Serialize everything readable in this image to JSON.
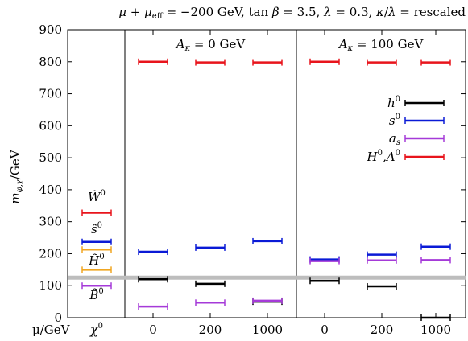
{
  "chart_data": {
    "type": "scatter",
    "title": "μ + μ_eff = −200 GeV, tan β = 3.5, λ = 0.3, κ/λ = rescaled",
    "title_parts": {
      "t1": "μ + μ",
      "t1sub": "eff",
      "t2": " = −200 GeV, tan ",
      "beta": "β",
      "t3": " = 3.5, ",
      "lam1": "λ",
      "t4": " = 0.3, ",
      "kap": "κ",
      "t5": "/",
      "lam2": "λ",
      "t6": " = rescaled"
    },
    "ylabel": {
      "main": "m",
      "sub": "φ,χ",
      "unit": "/GeV"
    },
    "xlabel": "μ/GeV",
    "ylim": [
      0,
      900
    ],
    "y_ticks": [
      0,
      100,
      200,
      300,
      400,
      500,
      600,
      700,
      800,
      900
    ],
    "grid": false,
    "reference_line": 125,
    "panels": [
      {
        "label": "",
        "x_tick": "",
        "cat_label": "χ⁰"
      },
      {
        "label": "A_κ = 0 GeV",
        "label_main": "A",
        "label_sub": "κ",
        "label_rest": " = 0 GeV"
      },
      {
        "label": "A_κ = 100 GeV",
        "label_main": "A",
        "label_sub": "κ",
        "label_rest": " = 100 GeV"
      }
    ],
    "x_tick_labels": [
      "χ",
      "0",
      "200",
      "1000",
      "0",
      "200",
      "1000"
    ],
    "chi_tick": {
      "base": "χ",
      "sup": "0"
    },
    "neutralino_labels": [
      {
        "base": "W̃",
        "sup": "0"
      },
      {
        "base": "s̃",
        "sup": "0"
      },
      {
        "base": "H̃",
        "sup": "0"
      },
      {
        "base": "B̃",
        "sup": "0"
      }
    ],
    "legend": {
      "placement": "right",
      "entries": [
        {
          "label_main": "h",
          "label_sup": "0",
          "color": "#000000"
        },
        {
          "label_main": "s",
          "label_sup": "0",
          "color": "#0a1ad6"
        },
        {
          "label_main": "a",
          "label_sub": "s",
          "color": "#a53ad8"
        },
        {
          "label_main": "H",
          "label_sup": "0",
          "label_rest": ",A",
          "label_sup2": "0",
          "color": "#e8141c"
        }
      ]
    },
    "neutralinos": [
      {
        "name": "W̃⁰",
        "y": 328,
        "color": "#e8141c"
      },
      {
        "name": "s̃⁰",
        "y": 237,
        "color": "#0a1ad6"
      },
      {
        "name": "H̃⁰",
        "y": 150,
        "color": "#f0a622"
      },
      {
        "name": "B̃⁰",
        "y": 100,
        "color": "#a53ad8"
      },
      {
        "name": "extra-orange",
        "y": 213,
        "color": "#f0a622"
      }
    ],
    "series": [
      {
        "name": "h⁰",
        "color": "#000000",
        "values": [
          120,
          106,
          50,
          115,
          98,
          0
        ]
      },
      {
        "name": "s⁰",
        "color": "#0a1ad6",
        "values": [
          206,
          219,
          239,
          182,
          197,
          222
        ]
      },
      {
        "name": "a_s",
        "color": "#a53ad8",
        "values": [
          35,
          47,
          53,
          177,
          179,
          180
        ]
      },
      {
        "name": "H⁰,A⁰",
        "color": "#e8141c",
        "values": [
          800,
          798,
          798,
          800,
          798,
          798
        ]
      }
    ],
    "x_categories": [
      "0",
      "200",
      "1000",
      "0",
      "200",
      "1000"
    ]
  }
}
